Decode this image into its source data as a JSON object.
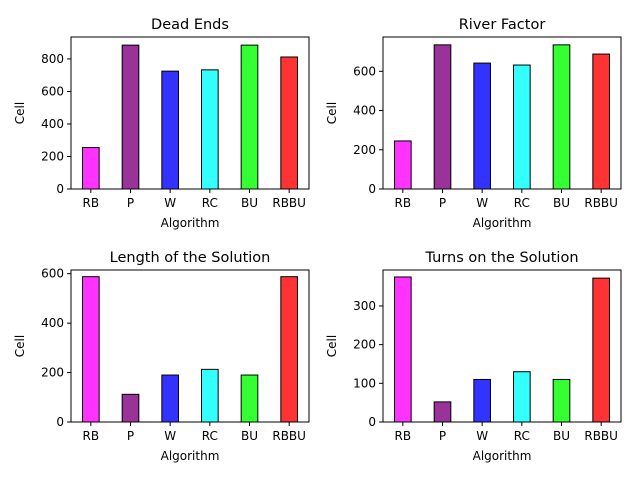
{
  "figure": {
    "colors": [
      "#ff00ff",
      "#800080",
      "#0000ff",
      "#00ffff",
      "#00ff00",
      "#ff0000"
    ]
  },
  "chart_data": [
    {
      "type": "bar",
      "title": "Dead Ends",
      "xlabel": "Algorithm",
      "ylabel": "Cell",
      "categories": [
        "RB",
        "P",
        "W",
        "RC",
        "BU",
        "RBBU"
      ],
      "values": [
        255,
        885,
        725,
        733,
        885,
        812
      ],
      "ylim": [
        0,
        935
      ],
      "yticks": [
        0,
        200,
        400,
        600,
        800
      ],
      "grid": false
    },
    {
      "type": "bar",
      "title": "River Factor",
      "xlabel": "Algorithm",
      "ylabel": "Cell",
      "categories": [
        "RB",
        "P",
        "W",
        "RC",
        "BU",
        "RBBU"
      ],
      "values": [
        245,
        735,
        642,
        632,
        735,
        688
      ],
      "ylim": [
        0,
        775
      ],
      "yticks": [
        0,
        200,
        400,
        600
      ],
      "grid": false
    },
    {
      "type": "bar",
      "title": "Length of the Solution",
      "xlabel": "Algorithm",
      "ylabel": "Cell",
      "categories": [
        "RB",
        "P",
        "W",
        "RC",
        "BU",
        "RBBU"
      ],
      "values": [
        588,
        112,
        190,
        213,
        190,
        588
      ],
      "ylim": [
        0,
        615
      ],
      "yticks": [
        0,
        200,
        400,
        600
      ],
      "grid": false
    },
    {
      "type": "bar",
      "title": "Turns on the Solution",
      "xlabel": "Algorithm",
      "ylabel": "Cell",
      "categories": [
        "RB",
        "P",
        "W",
        "RC",
        "BU",
        "RBBU"
      ],
      "values": [
        375,
        52,
        110,
        130,
        110,
        372
      ],
      "ylim": [
        0,
        393
      ],
      "yticks": [
        0,
        100,
        200,
        300
      ],
      "grid": false
    }
  ]
}
